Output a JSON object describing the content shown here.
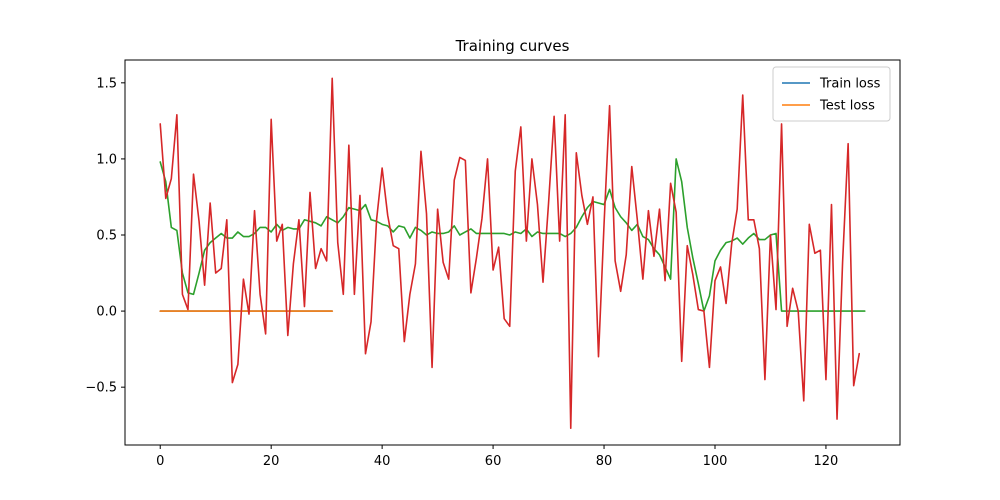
{
  "chart_data": {
    "type": "line",
    "title": "Training curves",
    "xlabel": "",
    "ylabel": "",
    "xlim": [
      -6.35,
      133.35
    ],
    "ylim": [
      -0.88,
      1.65
    ],
    "x_ticks": [
      0,
      20,
      40,
      60,
      80,
      100,
      120
    ],
    "y_ticks": [
      -0.5,
      0.0,
      0.5,
      1.0,
      1.5
    ],
    "x_tick_labels": [
      "0",
      "20",
      "40",
      "60",
      "80",
      "100",
      "120"
    ],
    "y_tick_labels": [
      "−0.5",
      "0.0",
      "0.5",
      "1.0",
      "1.5"
    ],
    "grid": false,
    "legend_position": "top-right",
    "colors": {
      "train": "#1f77b4",
      "test": "#ff7f0e",
      "smooth": "#2ca02c",
      "noisy": "#d62728"
    },
    "series": [
      {
        "name": "Train loss",
        "x_start": 0,
        "values": [
          0,
          0,
          0,
          0,
          0,
          0,
          0,
          0,
          0,
          0,
          0,
          0,
          0,
          0,
          0,
          0,
          0,
          0,
          0,
          0,
          0,
          0,
          0,
          0,
          0,
          0,
          0,
          0,
          0,
          0,
          0,
          0
        ]
      },
      {
        "name": "Test loss",
        "x_start": 0,
        "values": [
          0,
          0,
          0,
          0,
          0,
          0,
          0,
          0,
          0,
          0,
          0,
          0,
          0,
          0,
          0,
          0,
          0,
          0,
          0,
          0,
          0,
          0,
          0,
          0,
          0,
          0,
          0,
          0,
          0,
          0,
          0,
          0
        ]
      },
      {
        "x_start": 0,
        "values": [
          0.98,
          0.85,
          0.55,
          0.53,
          0.25,
          0.12,
          0.11,
          0.25,
          0.4,
          0.45,
          0.48,
          0.51,
          0.48,
          0.48,
          0.52,
          0.49,
          0.49,
          0.51,
          0.55,
          0.55,
          0.52,
          0.57,
          0.53,
          0.55,
          0.54,
          0.54,
          0.6,
          0.59,
          0.58,
          0.56,
          0.62,
          0.6,
          0.58,
          0.62,
          0.68,
          0.67,
          0.66,
          0.7,
          0.6,
          0.59,
          0.57,
          0.56,
          0.52,
          0.56,
          0.55,
          0.48,
          0.55,
          0.53,
          0.5,
          0.52,
          0.51,
          0.51,
          0.52,
          0.56,
          0.5,
          0.52,
          0.54,
          0.51,
          0.51,
          0.51,
          0.51,
          0.51,
          0.51,
          0.5,
          0.52,
          0.51,
          0.54,
          0.49,
          0.52,
          0.51,
          0.51,
          0.51,
          0.51,
          0.49,
          0.51,
          0.55,
          0.62,
          0.68,
          0.72,
          0.71,
          0.7,
          0.8,
          0.68,
          0.62,
          0.58,
          0.53,
          0.57,
          0.49,
          0.47,
          0.41,
          0.37,
          0.29,
          0.21,
          1.0,
          0.85,
          0.55,
          0.35,
          0.18,
          0.0,
          0.1,
          0.33,
          0.4,
          0.45,
          0.46,
          0.48,
          0.44,
          0.48,
          0.51,
          0.47,
          0.47,
          0.5,
          0.51,
          0.0,
          0.0,
          0.0,
          0.0,
          0.0,
          0.0,
          0.0,
          0.0,
          0.0,
          0.0,
          0.0,
          0.0,
          0.0,
          0.0,
          0.0,
          0.0
        ]
      },
      {
        "x_start": 0,
        "values": [
          1.23,
          0.74,
          0.87,
          1.29,
          0.11,
          0.01,
          0.9,
          0.59,
          0.17,
          0.71,
          0.25,
          0.28,
          0.6,
          -0.47,
          -0.35,
          0.21,
          -0.02,
          0.66,
          0.11,
          -0.15,
          1.26,
          0.46,
          0.57,
          -0.16,
          0.31,
          0.6,
          0.03,
          0.78,
          0.28,
          0.41,
          0.33,
          1.53,
          0.45,
          0.11,
          1.09,
          0.11,
          0.76,
          -0.28,
          -0.07,
          0.6,
          0.94,
          0.63,
          0.43,
          0.41,
          -0.2,
          0.11,
          0.31,
          1.05,
          0.64,
          -0.37,
          0.67,
          0.32,
          0.21,
          0.86,
          1.01,
          0.99,
          0.12,
          0.35,
          0.61,
          1.0,
          0.27,
          0.42,
          -0.05,
          -0.1,
          0.92,
          1.21,
          0.46,
          1.0,
          0.7,
          0.19,
          0.71,
          1.28,
          0.46,
          1.29,
          -0.77,
          1.04,
          0.76,
          0.57,
          0.75,
          -0.3,
          0.57,
          1.35,
          0.33,
          0.13,
          0.37,
          0.95,
          0.6,
          0.21,
          0.66,
          0.36,
          0.67,
          0.2,
          0.84,
          0.65,
          -0.33,
          0.43,
          0.24,
          0.01,
          0.0,
          -0.37,
          0.2,
          0.29,
          0.05,
          0.44,
          0.67,
          1.42,
          0.6,
          0.6,
          0.41,
          -0.45,
          0.5,
          0.01,
          1.23,
          -0.1,
          0.15,
          0.0,
          -0.59,
          0.57,
          0.38,
          0.4,
          -0.45,
          0.7,
          -0.71,
          0.32,
          1.1,
          -0.49,
          -0.28
        ]
      }
    ]
  }
}
